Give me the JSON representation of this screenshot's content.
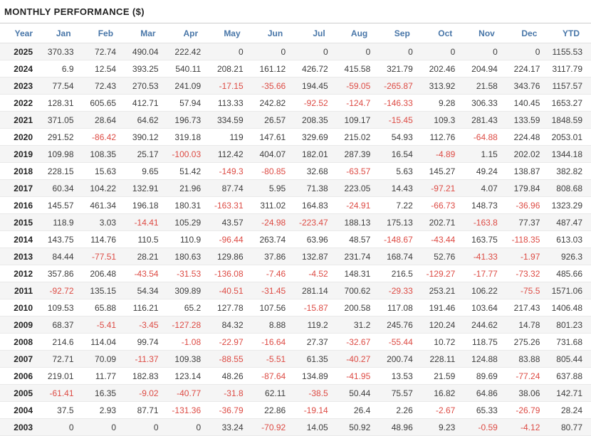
{
  "title": "MONTHLY PERFORMANCE ($)",
  "colors": {
    "header_text": "#4876a8",
    "positive_text": "#3d3d3d",
    "negative_text": "#dd4b44",
    "row_stripe": "#f5f5f5",
    "title_text": "#222222"
  },
  "chart_data": {
    "type": "table",
    "title": "MONTHLY PERFORMANCE ($)",
    "columns": [
      "Year",
      "Jan",
      "Feb",
      "Mar",
      "Apr",
      "May",
      "Jun",
      "Jul",
      "Aug",
      "Sep",
      "Oct",
      "Nov",
      "Dec",
      "YTD"
    ],
    "rows": [
      {
        "year": "2025",
        "values": [
          "370.33",
          "72.74",
          "490.04",
          "222.42",
          "0",
          "0",
          "0",
          "0",
          "0",
          "0",
          "0",
          "0",
          "1155.53"
        ]
      },
      {
        "year": "2024",
        "values": [
          "6.9",
          "12.54",
          "393.25",
          "540.11",
          "208.21",
          "161.12",
          "426.72",
          "415.58",
          "321.79",
          "202.46",
          "204.94",
          "224.17",
          "3117.79"
        ]
      },
      {
        "year": "2023",
        "values": [
          "77.54",
          "72.43",
          "270.53",
          "241.09",
          "-17.15",
          "-35.66",
          "194.45",
          "-59.05",
          "-265.87",
          "313.92",
          "21.58",
          "343.76",
          "1157.57"
        ]
      },
      {
        "year": "2022",
        "values": [
          "128.31",
          "605.65",
          "412.71",
          "57.94",
          "113.33",
          "242.82",
          "-92.52",
          "-124.7",
          "-146.33",
          "9.28",
          "306.33",
          "140.45",
          "1653.27"
        ]
      },
      {
        "year": "2021",
        "values": [
          "371.05",
          "28.64",
          "64.62",
          "196.73",
          "334.59",
          "26.57",
          "208.35",
          "109.17",
          "-15.45",
          "109.3",
          "281.43",
          "133.59",
          "1848.59"
        ]
      },
      {
        "year": "2020",
        "values": [
          "291.52",
          "-86.42",
          "390.12",
          "319.18",
          "119",
          "147.61",
          "329.69",
          "215.02",
          "54.93",
          "112.76",
          "-64.88",
          "224.48",
          "2053.01"
        ]
      },
      {
        "year": "2019",
        "values": [
          "109.98",
          "108.35",
          "25.17",
          "-100.03",
          "112.42",
          "404.07",
          "182.01",
          "287.39",
          "16.54",
          "-4.89",
          "1.15",
          "202.02",
          "1344.18"
        ]
      },
      {
        "year": "2018",
        "values": [
          "228.15",
          "15.63",
          "9.65",
          "51.42",
          "-149.3",
          "-80.85",
          "32.68",
          "-63.57",
          "5.63",
          "145.27",
          "49.24",
          "138.87",
          "382.82"
        ]
      },
      {
        "year": "2017",
        "values": [
          "60.34",
          "104.22",
          "132.91",
          "21.96",
          "87.74",
          "5.95",
          "71.38",
          "223.05",
          "14.43",
          "-97.21",
          "4.07",
          "179.84",
          "808.68"
        ]
      },
      {
        "year": "2016",
        "values": [
          "145.57",
          "461.34",
          "196.18",
          "180.31",
          "-163.31",
          "311.02",
          "164.83",
          "-24.91",
          "7.22",
          "-66.73",
          "148.73",
          "-36.96",
          "1323.29"
        ]
      },
      {
        "year": "2015",
        "values": [
          "118.9",
          "3.03",
          "-14.41",
          "105.29",
          "43.57",
          "-24.98",
          "-223.47",
          "188.13",
          "175.13",
          "202.71",
          "-163.8",
          "77.37",
          "487.47"
        ]
      },
      {
        "year": "2014",
        "values": [
          "143.75",
          "114.76",
          "110.5",
          "110.9",
          "-96.44",
          "263.74",
          "63.96",
          "48.57",
          "-148.67",
          "-43.44",
          "163.75",
          "-118.35",
          "613.03"
        ]
      },
      {
        "year": "2013",
        "values": [
          "84.44",
          "-77.51",
          "28.21",
          "180.63",
          "129.86",
          "37.86",
          "132.87",
          "231.74",
          "168.74",
          "52.76",
          "-41.33",
          "-1.97",
          "926.3"
        ]
      },
      {
        "year": "2012",
        "values": [
          "357.86",
          "206.48",
          "-43.54",
          "-31.53",
          "-136.08",
          "-7.46",
          "-4.52",
          "148.31",
          "216.5",
          "-129.27",
          "-17.77",
          "-73.32",
          "485.66"
        ]
      },
      {
        "year": "2011",
        "values": [
          "-92.72",
          "135.15",
          "54.34",
          "309.89",
          "-40.51",
          "-31.45",
          "281.14",
          "700.62",
          "-29.33",
          "253.21",
          "106.22",
          "-75.5",
          "1571.06"
        ]
      },
      {
        "year": "2010",
        "values": [
          "109.53",
          "65.88",
          "116.21",
          "65.2",
          "127.78",
          "107.56",
          "-15.87",
          "200.58",
          "117.08",
          "191.46",
          "103.64",
          "217.43",
          "1406.48"
        ]
      },
      {
        "year": "2009",
        "values": [
          "68.37",
          "-5.41",
          "-3.45",
          "-127.28",
          "84.32",
          "8.88",
          "119.2",
          "31.2",
          "245.76",
          "120.24",
          "244.62",
          "14.78",
          "801.23"
        ]
      },
      {
        "year": "2008",
        "values": [
          "214.6",
          "114.04",
          "99.74",
          "-1.08",
          "-22.97",
          "-16.64",
          "27.37",
          "-32.67",
          "-55.44",
          "10.72",
          "118.75",
          "275.26",
          "731.68"
        ]
      },
      {
        "year": "2007",
        "values": [
          "72.71",
          "70.09",
          "-11.37",
          "109.38",
          "-88.55",
          "-5.51",
          "61.35",
          "-40.27",
          "200.74",
          "228.11",
          "124.88",
          "83.88",
          "805.44"
        ]
      },
      {
        "year": "2006",
        "values": [
          "219.01",
          "11.77",
          "182.83",
          "123.14",
          "48.26",
          "-87.64",
          "134.89",
          "-41.95",
          "13.53",
          "21.59",
          "89.69",
          "-77.24",
          "637.88"
        ]
      },
      {
        "year": "2005",
        "values": [
          "-61.41",
          "16.35",
          "-9.02",
          "-40.77",
          "-31.8",
          "62.11",
          "-38.5",
          "50.44",
          "75.57",
          "16.82",
          "64.86",
          "38.06",
          "142.71"
        ]
      },
      {
        "year": "2004",
        "values": [
          "37.5",
          "2.93",
          "87.71",
          "-131.36",
          "-36.79",
          "22.86",
          "-19.14",
          "26.4",
          "2.26",
          "-2.67",
          "65.33",
          "-26.79",
          "28.24"
        ]
      },
      {
        "year": "2003",
        "values": [
          "0",
          "0",
          "0",
          "0",
          "33.24",
          "-70.92",
          "14.05",
          "50.92",
          "48.96",
          "9.23",
          "-0.59",
          "-4.12",
          "80.77"
        ]
      }
    ]
  }
}
